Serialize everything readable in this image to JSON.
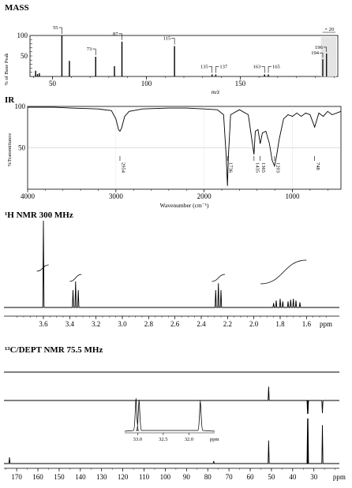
{
  "chart_data": [
    {
      "type": "bar",
      "panel": "mass",
      "title": "MASS",
      "xlabel": "m/z",
      "ylabel": "% of Base Peak",
      "xlim": [
        38,
        202
      ],
      "ylim": [
        0,
        100
      ],
      "x_ticks": [
        50,
        100,
        150
      ],
      "y_ticks": [
        50,
        100
      ],
      "zoom_label": "× 20",
      "zoom_start": 193,
      "peaks": [
        {
          "x": 41,
          "y": 14
        },
        {
          "x": 42,
          "y": 6
        },
        {
          "x": 43,
          "y": 8
        },
        {
          "x": 55,
          "y": 100,
          "label": "55"
        },
        {
          "x": 59,
          "y": 38
        },
        {
          "x": 73,
          "y": 48,
          "label": "73"
        },
        {
          "x": 83,
          "y": 25
        },
        {
          "x": 87,
          "y": 85,
          "label": "87"
        },
        {
          "x": 115,
          "y": 74,
          "label": "115"
        },
        {
          "x": 135,
          "y": 5,
          "label": "135"
        },
        {
          "x": 137,
          "y": 5,
          "label": "137"
        },
        {
          "x": 163,
          "y": 5,
          "label": "163"
        },
        {
          "x": 165,
          "y": 5,
          "label": "165"
        },
        {
          "x": 194,
          "y": 3
        },
        {
          "x": 196,
          "y": 4
        }
      ],
      "zoom_peaks": [
        {
          "x": 194,
          "y": 42,
          "label": "194"
        },
        {
          "x": 196,
          "y": 56,
          "label": "196"
        }
      ]
    },
    {
      "type": "line",
      "panel": "ir",
      "title": "IR",
      "xlabel": "Wavenumber (cm⁻¹)",
      "ylabel": "%Transmittance",
      "xlim": [
        4000,
        450
      ],
      "ylim": [
        0,
        100
      ],
      "x_ticks": [
        4000,
        3000,
        2000,
        1000
      ],
      "y_ticks": [
        50,
        100
      ],
      "points": [
        [
          4000,
          99
        ],
        [
          3700,
          99
        ],
        [
          3500,
          98
        ],
        [
          3200,
          97
        ],
        [
          3050,
          95
        ],
        [
          3000,
          85
        ],
        [
          2970,
          72
        ],
        [
          2954,
          70
        ],
        [
          2935,
          74
        ],
        [
          2900,
          88
        ],
        [
          2850,
          94
        ],
        [
          2700,
          97
        ],
        [
          2400,
          98
        ],
        [
          2200,
          98
        ],
        [
          2000,
          97
        ],
        [
          1850,
          96
        ],
        [
          1780,
          90
        ],
        [
          1750,
          40
        ],
        [
          1736,
          4
        ],
        [
          1725,
          40
        ],
        [
          1700,
          90
        ],
        [
          1600,
          96
        ],
        [
          1500,
          90
        ],
        [
          1460,
          60
        ],
        [
          1435,
          42
        ],
        [
          1420,
          70
        ],
        [
          1390,
          72
        ],
        [
          1365,
          55
        ],
        [
          1340,
          68
        ],
        [
          1300,
          70
        ],
        [
          1260,
          55
        ],
        [
          1230,
          35
        ],
        [
          1203,
          28
        ],
        [
          1180,
          40
        ],
        [
          1150,
          60
        ],
        [
          1100,
          85
        ],
        [
          1050,
          90
        ],
        [
          1000,
          88
        ],
        [
          950,
          92
        ],
        [
          900,
          88
        ],
        [
          850,
          92
        ],
        [
          800,
          90
        ],
        [
          748,
          75
        ],
        [
          700,
          92
        ],
        [
          650,
          88
        ],
        [
          600,
          94
        ],
        [
          550,
          90
        ],
        [
          450,
          94
        ]
      ],
      "annotations": [
        {
          "x": 2954,
          "label": "2954"
        },
        {
          "x": 1736,
          "label": "1736"
        },
        {
          "x": 1435,
          "label": "1435"
        },
        {
          "x": 1365,
          "label": "1365"
        },
        {
          "x": 1203,
          "label": "1203"
        },
        {
          "x": 748,
          "label": "748"
        }
      ]
    },
    {
      "type": "line",
      "panel": "h_nmr",
      "title": "¹H NMR 300 MHz",
      "xlabel": "ppm",
      "xlim": [
        3.9,
        1.35
      ],
      "x_ticks": [
        3.6,
        3.4,
        3.2,
        3.0,
        2.8,
        2.6,
        2.4,
        2.2,
        2.0,
        1.8,
        1.6
      ],
      "peaks": [
        {
          "ppm": 3.6,
          "h": 1.0
        },
        {
          "ppm": 3.375,
          "h": 0.2
        },
        {
          "ppm": 3.355,
          "h": 0.3
        },
        {
          "ppm": 3.335,
          "h": 0.2
        },
        {
          "ppm": 2.29,
          "h": 0.2
        },
        {
          "ppm": 2.27,
          "h": 0.28
        },
        {
          "ppm": 2.25,
          "h": 0.2
        },
        {
          "ppm": 1.85,
          "h": 0.05
        },
        {
          "ppm": 1.83,
          "h": 0.08
        },
        {
          "ppm": 1.8,
          "h": 0.1
        },
        {
          "ppm": 1.78,
          "h": 0.07
        },
        {
          "ppm": 1.74,
          "h": 0.07
        },
        {
          "ppm": 1.72,
          "h": 0.09
        },
        {
          "ppm": 1.7,
          "h": 0.1
        },
        {
          "ppm": 1.68,
          "h": 0.08
        },
        {
          "ppm": 1.65,
          "h": 0.06
        }
      ]
    },
    {
      "type": "line",
      "panel": "c_nmr",
      "title": "¹³C/DEPT NMR 75.5 MHz",
      "xlabel": "ppm",
      "xlim": [
        176,
        18
      ],
      "x_ticks": [
        170,
        160,
        150,
        140,
        130,
        120,
        110,
        100,
        90,
        80,
        70,
        60,
        50,
        40,
        30
      ],
      "dept90_peaks": [],
      "dept135_peaks": [
        {
          "ppm": 51.3,
          "h": 0.7,
          "dir": "up"
        },
        {
          "ppm": 33.0,
          "h": 0.85,
          "dir": "down"
        },
        {
          "ppm": 32.8,
          "h": 0.85,
          "dir": "down"
        },
        {
          "ppm": 26.0,
          "h": 0.8,
          "dir": "down"
        }
      ],
      "carbon_peaks": [
        {
          "ppm": 173.4,
          "h": 0.12
        },
        {
          "ppm": 77.2,
          "h": 0.05
        },
        {
          "ppm": 51.3,
          "h": 0.45
        },
        {
          "ppm": 33.0,
          "h": 0.88
        },
        {
          "ppm": 32.8,
          "h": 0.88
        },
        {
          "ppm": 26.0,
          "h": 0.75
        }
      ],
      "inset": {
        "xlim": [
          33.25,
          31.5
        ],
        "x_ticks": [
          33.0,
          32.5,
          32.0
        ],
        "xlabel": "ppm",
        "peaks": [
          {
            "ppm": 33.03,
            "h": 1.0
          },
          {
            "ppm": 32.97,
            "h": 0.95
          },
          {
            "ppm": 31.78,
            "h": 0.92
          }
        ]
      }
    }
  ]
}
